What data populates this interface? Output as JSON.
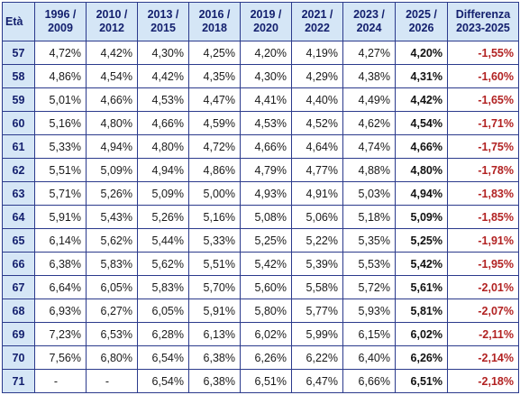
{
  "table": {
    "headers": [
      {
        "line1": "Età",
        "line2": ""
      },
      {
        "line1": "1996 /",
        "line2": "2009"
      },
      {
        "line1": "2010 /",
        "line2": "2012"
      },
      {
        "line1": "2013 /",
        "line2": "2015"
      },
      {
        "line1": "2016 /",
        "line2": "2018"
      },
      {
        "line1": "2019 /",
        "line2": "2020"
      },
      {
        "line1": "2021 /",
        "line2": "2022"
      },
      {
        "line1": "2023 /",
        "line2": "2024"
      },
      {
        "line1": "2025 /",
        "line2": "2026"
      },
      {
        "line1": "Differenza",
        "line2": "2023-2025"
      }
    ],
    "rows": [
      [
        "57",
        "4,72%",
        "4,42%",
        "4,30%",
        "4,25%",
        "4,20%",
        "4,19%",
        "4,27%",
        "4,20%",
        "-1,55%"
      ],
      [
        "58",
        "4,86%",
        "4,54%",
        "4,42%",
        "4,35%",
        "4,30%",
        "4,29%",
        "4,38%",
        "4,31%",
        "-1,60%"
      ],
      [
        "59",
        "5,01%",
        "4,66%",
        "4,53%",
        "4,47%",
        "4,41%",
        "4,40%",
        "4,49%",
        "4,42%",
        "-1,65%"
      ],
      [
        "60",
        "5,16%",
        "4,80%",
        "4,66%",
        "4,59%",
        "4,53%",
        "4,52%",
        "4,62%",
        "4,54%",
        "-1,71%"
      ],
      [
        "61",
        "5,33%",
        "4,94%",
        "4,80%",
        "4,72%",
        "4,66%",
        "4,64%",
        "4,74%",
        "4,66%",
        "-1,75%"
      ],
      [
        "62",
        "5,51%",
        "5,09%",
        "4,94%",
        "4,86%",
        "4,79%",
        "4,77%",
        "4,88%",
        "4,80%",
        "-1,78%"
      ],
      [
        "63",
        "5,71%",
        "5,26%",
        "5,09%",
        "5,00%",
        "4,93%",
        "4,91%",
        "5,03%",
        "4,94%",
        "-1,83%"
      ],
      [
        "64",
        "5,91%",
        "5,43%",
        "5,26%",
        "5,16%",
        "5,08%",
        "5,06%",
        "5,18%",
        "5,09%",
        "-1,85%"
      ],
      [
        "65",
        "6,14%",
        "5,62%",
        "5,44%",
        "5,33%",
        "5,25%",
        "5,22%",
        "5,35%",
        "5,25%",
        "-1,91%"
      ],
      [
        "66",
        "6,38%",
        "5,83%",
        "5,62%",
        "5,51%",
        "5,42%",
        "5,39%",
        "5,53%",
        "5,42%",
        "-1,95%"
      ],
      [
        "67",
        "6,64%",
        "6,05%",
        "5,83%",
        "5,70%",
        "5,60%",
        "5,58%",
        "5,72%",
        "5,61%",
        "-2,01%"
      ],
      [
        "68",
        "6,93%",
        "6,27%",
        "6,05%",
        "5,91%",
        "5,80%",
        "5,77%",
        "5,93%",
        "5,81%",
        "-2,07%"
      ],
      [
        "69",
        "7,23%",
        "6,53%",
        "6,28%",
        "6,13%",
        "6,02%",
        "5,99%",
        "6,15%",
        "6,02%",
        "-2,11%"
      ],
      [
        "70",
        "7,56%",
        "6,80%",
        "6,54%",
        "6,38%",
        "6,26%",
        "6,22%",
        "6,40%",
        "6,26%",
        "-2,14%"
      ],
      [
        "71",
        "-",
        "-",
        "6,54%",
        "6,38%",
        "6,51%",
        "6,47%",
        "6,66%",
        "6,51%",
        "-2,18%"
      ]
    ]
  },
  "colors": {
    "header_bg": "#d5e6f6",
    "header_text": "#14206e",
    "border": "#2b3a8c",
    "difference_text": "#b22222"
  }
}
